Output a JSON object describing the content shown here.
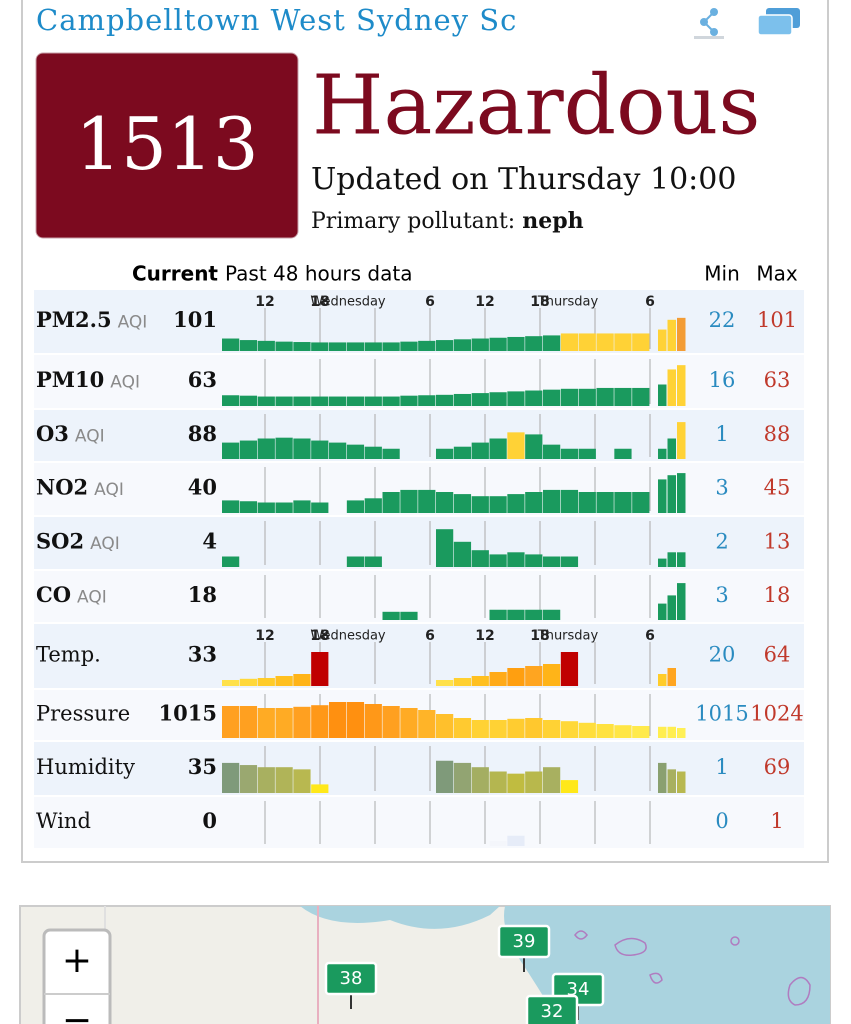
{
  "header": {
    "title": "Campbelltown West Sydney Sc"
  },
  "aqi": {
    "value": 1513,
    "level": "Hazardous",
    "updated": "Updated on Thursday 10:00",
    "pollutant_label": "Primary pollutant:",
    "pollutant": "neph"
  },
  "table": {
    "columns": {
      "current": "Current",
      "history": "Past 48 hours data",
      "min": "Min",
      "max": "Max"
    },
    "time_labels": [
      "12",
      "18",
      "Wednesday",
      "6",
      "12",
      "18",
      "Thursday",
      "6"
    ],
    "rows": [
      {
        "name": "PM2.5",
        "unit": "AQI",
        "current": 101,
        "min": 22,
        "max": 101,
        "time_axis": true,
        "bars": [
          32,
          28,
          26,
          24,
          23,
          22,
          22,
          22,
          22,
          22,
          24,
          26,
          28,
          30,
          32,
          34,
          36,
          38,
          40,
          45,
          45,
          45,
          45,
          45
        ],
        "colors": [
          "#1a9a5e",
          "#1a9a5e",
          "#1a9a5e",
          "#1a9a5e",
          "#1a9a5e",
          "#1a9a5e",
          "#1a9a5e",
          "#1a9a5e",
          "#1a9a5e",
          "#1a9a5e",
          "#1a9a5e",
          "#1a9a5e",
          "#1a9a5e",
          "#1a9a5e",
          "#1a9a5e",
          "#1a9a5e",
          "#1a9a5e",
          "#1a9a5e",
          "#1a9a5e",
          "#ffd236",
          "#ffd236",
          "#ffd236",
          "#ffd236",
          "#ffd236"
        ],
        "recent": [
          55,
          80,
          85
        ],
        "recent_colors": [
          "#ffd236",
          "#ffd236",
          "#f39c35"
        ]
      },
      {
        "name": "PM10",
        "unit": "AQI",
        "current": 63,
        "min": 16,
        "max": 63,
        "bars": [
          25,
          24,
          22,
          22,
          22,
          22,
          22,
          22,
          22,
          22,
          24,
          25,
          26,
          28,
          30,
          32,
          34,
          36,
          38,
          40,
          40,
          42,
          42,
          42
        ],
        "colors": [
          "#1a9a5e",
          "#1a9a5e",
          "#1a9a5e",
          "#1a9a5e",
          "#1a9a5e",
          "#1a9a5e",
          "#1a9a5e",
          "#1a9a5e",
          "#1a9a5e",
          "#1a9a5e",
          "#1a9a5e",
          "#1a9a5e",
          "#1a9a5e",
          "#1a9a5e",
          "#1a9a5e",
          "#1a9a5e",
          "#1a9a5e",
          "#1a9a5e",
          "#1a9a5e",
          "#1a9a5e",
          "#1a9a5e",
          "#1a9a5e",
          "#1a9a5e",
          "#1a9a5e"
        ],
        "recent": [
          50,
          85,
          95
        ],
        "recent_colors": [
          "#1a9a5e",
          "#ffd236",
          "#ffd236"
        ]
      },
      {
        "name": "O3",
        "unit": "AQI",
        "current": 88,
        "min": 1,
        "max": 88,
        "bars": [
          40,
          45,
          50,
          52,
          50,
          45,
          40,
          35,
          30,
          25,
          null,
          null,
          25,
          30,
          40,
          50,
          65,
          60,
          35,
          25,
          25,
          null,
          25,
          null
        ],
        "colors": [
          "#1a9a5e",
          "#1a9a5e",
          "#1a9a5e",
          "#1a9a5e",
          "#1a9a5e",
          "#1a9a5e",
          "#1a9a5e",
          "#1a9a5e",
          "#1a9a5e",
          "#1a9a5e",
          null,
          null,
          "#1a9a5e",
          "#1a9a5e",
          "#1a9a5e",
          "#1a9a5e",
          "#ffd236",
          "#1a9a5e",
          "#1a9a5e",
          "#1a9a5e",
          "#1a9a5e",
          null,
          "#1a9a5e",
          null
        ],
        "recent": [
          25,
          50,
          90
        ],
        "recent_colors": [
          "#1a9a5e",
          "#1a9a5e",
          "#ffd236"
        ]
      },
      {
        "name": "NO2",
        "unit": "AQI",
        "current": 40,
        "min": 3,
        "max": 45,
        "bars": [
          30,
          28,
          25,
          25,
          30,
          25,
          null,
          30,
          35,
          50,
          55,
          55,
          50,
          45,
          40,
          40,
          45,
          50,
          55,
          55,
          50,
          50,
          50,
          50
        ],
        "colors": [
          "#1a9a5e",
          "#1a9a5e",
          "#1a9a5e",
          "#1a9a5e",
          "#1a9a5e",
          "#1a9a5e",
          null,
          "#1a9a5e",
          "#1a9a5e",
          "#1a9a5e",
          "#1a9a5e",
          "#1a9a5e",
          "#1a9a5e",
          "#1a9a5e",
          "#1a9a5e",
          "#1a9a5e",
          "#1a9a5e",
          "#1a9a5e",
          "#1a9a5e",
          "#1a9a5e",
          "#1a9a5e",
          "#1a9a5e",
          "#1a9a5e",
          "#1a9a5e"
        ],
        "recent": [
          80,
          90,
          95
        ],
        "recent_colors": [
          "#1a9a5e",
          "#1a9a5e",
          "#1a9a5e"
        ]
      },
      {
        "name": "SO2",
        "unit": "AQI",
        "current": 4,
        "min": 2,
        "max": 13,
        "bars": [
          25,
          null,
          null,
          null,
          null,
          null,
          null,
          25,
          25,
          null,
          null,
          null,
          90,
          60,
          40,
          30,
          35,
          30,
          25,
          25,
          null,
          null,
          null,
          null
        ],
        "colors": [
          "#1a9a5e",
          null,
          null,
          null,
          null,
          null,
          null,
          "#1a9a5e",
          "#1a9a5e",
          null,
          null,
          null,
          "#1a9a5e",
          "#1a9a5e",
          "#1a9a5e",
          "#1a9a5e",
          "#1a9a5e",
          "#1a9a5e",
          "#1a9a5e",
          "#1a9a5e",
          null,
          null,
          null,
          null
        ],
        "recent": [
          20,
          35,
          35
        ],
        "recent_colors": [
          "#1a9a5e",
          "#1a9a5e",
          "#1a9a5e"
        ]
      },
      {
        "name": "CO",
        "unit": "AQI",
        "current": 18,
        "min": 3,
        "max": 18,
        "bars": [
          null,
          null,
          null,
          null,
          null,
          null,
          null,
          null,
          null,
          20,
          20,
          null,
          null,
          null,
          null,
          25,
          25,
          25,
          25,
          null,
          null,
          null,
          null,
          null
        ],
        "colors": [
          null,
          null,
          null,
          null,
          null,
          null,
          null,
          null,
          null,
          "#1a9a5e",
          "#1a9a5e",
          null,
          null,
          null,
          null,
          "#1a9a5e",
          "#1a9a5e",
          "#1a9a5e",
          "#1a9a5e",
          null,
          null,
          null,
          null,
          null
        ],
        "recent": [
          40,
          60,
          90
        ],
        "recent_colors": [
          "#1a9a5e",
          "#1a9a5e",
          "#1a9a5e"
        ]
      },
      {
        "name": "Temp.",
        "current": 33,
        "min": 20,
        "max": 64,
        "time_axis": true,
        "bars": [
          15,
          18,
          20,
          25,
          30,
          85,
          null,
          null,
          null,
          null,
          null,
          null,
          15,
          20,
          25,
          35,
          45,
          50,
          55,
          85,
          null,
          null,
          null,
          null
        ],
        "colors": [
          "#ffe14a",
          "#ffd83a",
          "#ffcc2a",
          "#ffc020",
          "#ffb418",
          "#c00000",
          null,
          null,
          null,
          null,
          null,
          null,
          "#ffe14a",
          "#ffd030",
          "#ffc020",
          "#ffaa18",
          "#ff9f10",
          "#ffa520",
          "#ffb418",
          "#c00000",
          null,
          null,
          null,
          null
        ],
        "recent": [
          30,
          45
        ],
        "recent_colors": [
          "#ffcc2a",
          "#ffa520"
        ]
      },
      {
        "name": "Pressure",
        "current": 1015,
        "min": 1015,
        "max": 1024,
        "bars": [
          80,
          80,
          75,
          75,
          78,
          82,
          90,
          90,
          85,
          80,
          75,
          70,
          60,
          50,
          45,
          45,
          48,
          50,
          45,
          42,
          38,
          35,
          32,
          30
        ],
        "colors": [
          "#ffa020",
          "#ffa020",
          "#ffab24",
          "#ffab24",
          "#ffa020",
          "#ff9818",
          "#ff9010",
          "#ff9010",
          "#ff9818",
          "#ffa020",
          "#ffab24",
          "#ffb428",
          "#ffc02c",
          "#ffca30",
          "#ffd234",
          "#ffd234",
          "#ffcc30",
          "#ffc82e",
          "#ffd234",
          "#ffd838",
          "#ffde3c",
          "#ffe240",
          "#ffe646",
          "#ffea4c"
        ],
        "recent": [
          28,
          28,
          25
        ],
        "recent_colors": [
          "#ffee50",
          "#ffee50",
          "#fff056"
        ]
      },
      {
        "name": "Humidity",
        "current": 35,
        "min": 1,
        "max": 69,
        "bars": [
          70,
          65,
          60,
          60,
          55,
          20,
          null,
          null,
          null,
          null,
          null,
          null,
          75,
          70,
          60,
          50,
          45,
          50,
          60,
          30,
          null,
          null,
          null,
          null
        ],
        "colors": [
          "#7f9a7a",
          "#9aa870",
          "#a8b060",
          "#b0b458",
          "#b8b850",
          "#ffe81a",
          null,
          null,
          null,
          null,
          null,
          null,
          "#7f9a7a",
          "#92a472",
          "#a4ae62",
          "#b4b650",
          "#c0bc40",
          "#b8b84c",
          "#a8b060",
          "#ffe81a",
          null,
          null,
          null,
          null
        ],
        "recent": [
          70,
          55,
          50
        ],
        "recent_colors": [
          "#8aa070",
          "#a8b060",
          "#b8b850"
        ]
      },
      {
        "name": "Wind",
        "current": 0,
        "min": 0,
        "max": 1,
        "bars": [
          null,
          null,
          null,
          null,
          null,
          null,
          null,
          null,
          null,
          null,
          null,
          null,
          null,
          null,
          null,
          12,
          25,
          null,
          null,
          null,
          null,
          null,
          null,
          null
        ],
        "colors": [
          null,
          null,
          null,
          null,
          null,
          null,
          null,
          null,
          null,
          null,
          null,
          null,
          null,
          null,
          null,
          "#f4f6fb",
          "#e6ecf8",
          null,
          null,
          null,
          null,
          null,
          null,
          null
        ],
        "recent": [],
        "recent_colors": []
      }
    ]
  },
  "map": {
    "zoom_in": "+",
    "zoom_out": "−",
    "markers": [
      {
        "label": "39"
      },
      {
        "label": "38"
      },
      {
        "label": "34"
      },
      {
        "label": "32"
      }
    ]
  }
}
